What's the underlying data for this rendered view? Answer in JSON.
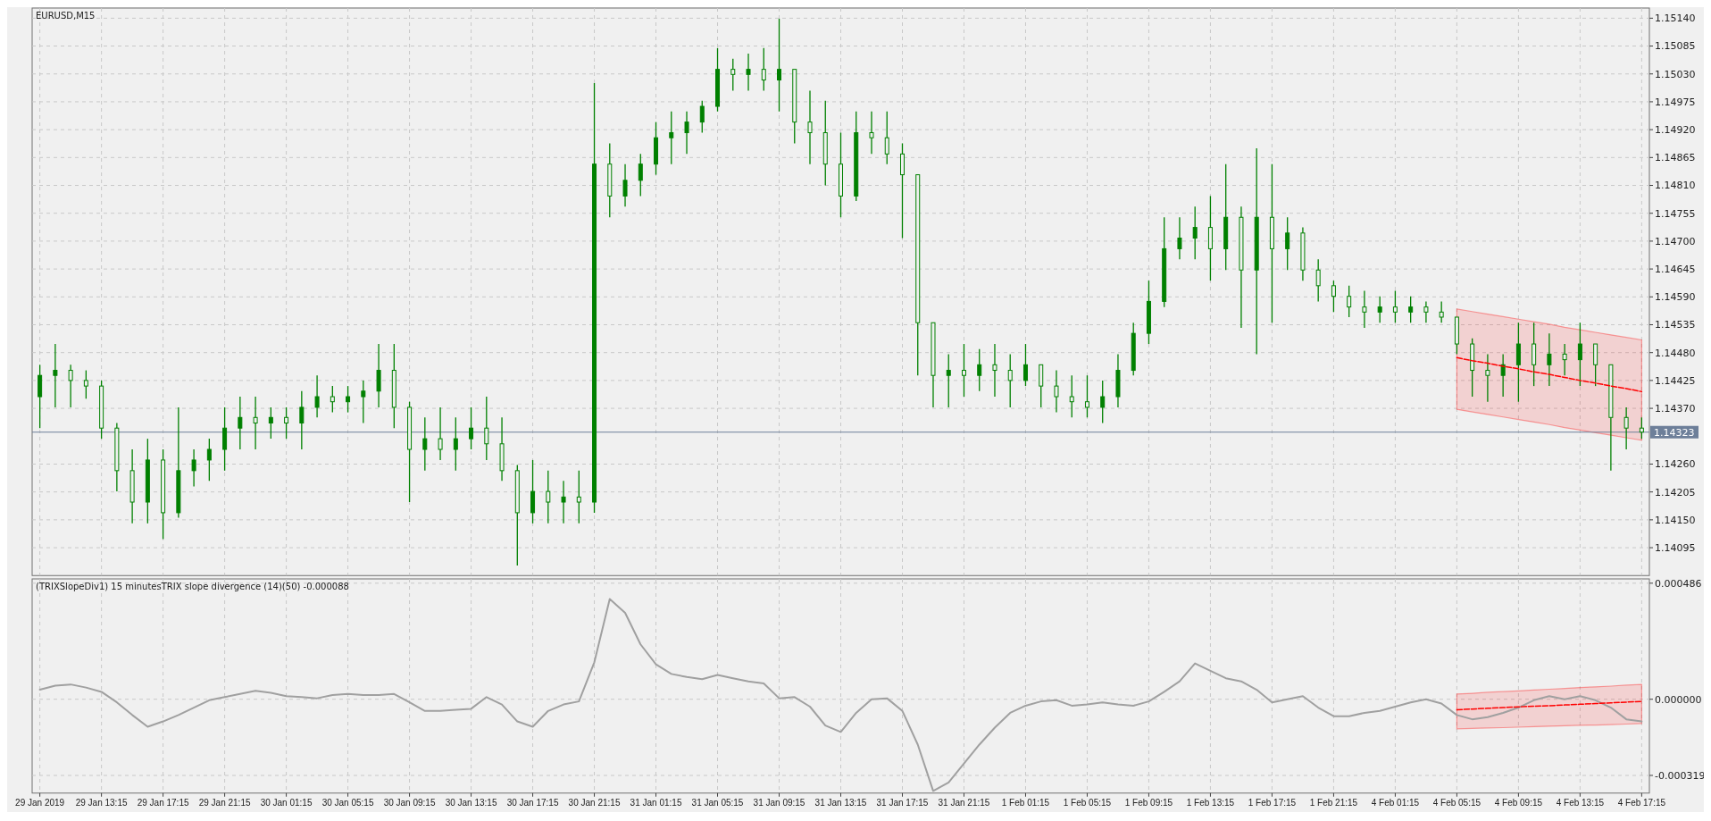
{
  "chart_data": [
    {
      "type": "candlestick",
      "title": "EURUSD,M15",
      "color": "#008000",
      "grid": true,
      "tick_labels": "y",
      "categories": [
        null,
        null,
        null,
        null,
        null,
        null,
        null,
        null,
        null,
        null,
        null,
        null,
        null,
        null,
        null,
        null,
        null,
        null,
        null,
        null,
        null,
        null,
        null,
        null,
        null,
        null,
        null,
        null,
        null,
        null,
        null,
        null,
        null,
        null,
        null,
        null,
        null,
        null,
        null,
        null,
        null,
        null,
        null,
        null,
        null,
        null,
        null,
        null,
        null,
        null,
        null,
        null,
        null,
        null,
        null,
        null,
        null,
        null,
        null,
        null,
        null,
        null,
        null,
        null,
        null,
        null,
        null,
        null,
        null,
        null,
        null,
        null,
        null,
        null,
        null,
        null,
        null,
        null,
        null,
        null,
        null,
        null,
        null,
        null,
        null,
        null,
        null,
        null,
        null,
        null,
        null,
        null,
        null,
        null,
        null,
        null,
        null,
        null,
        null,
        null,
        null,
        null,
        null,
        null,
        null
      ],
      "ylim": [
        1.1404,
        1.1516
      ],
      "yticks": [
        {
          "value": 1.14095,
          "label": "1.14095"
        },
        {
          "value": 1.1415,
          "label": "1.14150"
        },
        {
          "value": 1.14205,
          "label": "1.14205"
        },
        {
          "value": 1.1426,
          "label": "1.14260"
        },
        {
          "value": 1.1437,
          "label": "1.14370"
        },
        {
          "value": 1.14425,
          "label": "1.14425"
        },
        {
          "value": 1.1448,
          "label": "1.14480"
        },
        {
          "value": 1.14535,
          "label": "1.14535"
        },
        {
          "value": 1.1459,
          "label": "1.14590"
        },
        {
          "value": 1.14645,
          "label": "1.14645"
        },
        {
          "value": 1.147,
          "label": "1.14700"
        },
        {
          "value": 1.14755,
          "label": "1.14755"
        },
        {
          "value": 1.1481,
          "label": "1.14810"
        },
        {
          "value": 1.14865,
          "label": "1.14865"
        },
        {
          "value": 1.1492,
          "label": "1.14920"
        },
        {
          "value": 1.14975,
          "label": "1.14975"
        },
        {
          "value": 1.1503,
          "label": "1.15030"
        },
        {
          "value": 1.15085,
          "label": "1.15085"
        },
        {
          "value": 1.1514,
          "label": "1.15140"
        }
      ],
      "ref_lines": [
        {
          "axis": "y",
          "value": 1.14323,
          "label": "1.14323",
          "color": "#6d7f99"
        }
      ],
      "ohlc": [
        [
          1.14393,
          1.14456,
          1.14331,
          1.14435
        ],
        [
          1.14435,
          1.14497,
          1.14372,
          1.14445
        ],
        [
          1.14445,
          1.14456,
          1.14372,
          1.14425
        ],
        [
          1.14425,
          1.14445,
          1.14389,
          1.14414
        ],
        [
          1.14414,
          1.14425,
          1.1431,
          1.14331
        ],
        [
          1.14331,
          1.14341,
          1.14206,
          1.14247
        ],
        [
          1.14247,
          1.14289,
          1.14143,
          1.14185
        ],
        [
          1.14185,
          1.1431,
          1.14143,
          1.14268
        ],
        [
          1.14268,
          1.14289,
          1.14112,
          1.14164
        ],
        [
          1.14164,
          1.14372,
          1.14154,
          1.14247
        ],
        [
          1.14247,
          1.14289,
          1.14216,
          1.14268
        ],
        [
          1.14268,
          1.1431,
          1.14227,
          1.14289
        ],
        [
          1.14289,
          1.14372,
          1.14247,
          1.14331
        ],
        [
          1.14331,
          1.14393,
          1.14289,
          1.14352
        ],
        [
          1.14352,
          1.14393,
          1.14289,
          1.14341
        ],
        [
          1.14341,
          1.14372,
          1.1431,
          1.14352
        ],
        [
          1.14352,
          1.14372,
          1.1431,
          1.14341
        ],
        [
          1.14341,
          1.14404,
          1.14289,
          1.14372
        ],
        [
          1.14372,
          1.14435,
          1.14352,
          1.14393
        ],
        [
          1.14393,
          1.14414,
          1.14362,
          1.14383
        ],
        [
          1.14383,
          1.14414,
          1.14362,
          1.14393
        ],
        [
          1.14393,
          1.14425,
          1.14341,
          1.14404
        ],
        [
          1.14404,
          1.14497,
          1.14372,
          1.14445
        ],
        [
          1.14445,
          1.14497,
          1.14331,
          1.14372
        ],
        [
          1.14372,
          1.14383,
          1.14185,
          1.14289
        ],
        [
          1.14289,
          1.14352,
          1.14247,
          1.1431
        ],
        [
          1.1431,
          1.14372,
          1.14268,
          1.14289
        ],
        [
          1.14289,
          1.14352,
          1.14247,
          1.1431
        ],
        [
          1.1431,
          1.14372,
          1.14289,
          1.14331
        ],
        [
          1.14331,
          1.14393,
          1.14268,
          1.143
        ],
        [
          1.143,
          1.14352,
          1.14227,
          1.14247
        ],
        [
          1.14247,
          1.14258,
          1.1406,
          1.14164
        ],
        [
          1.14164,
          1.14268,
          1.14143,
          1.14206
        ],
        [
          1.14206,
          1.14247,
          1.14143,
          1.14185
        ],
        [
          1.14185,
          1.14227,
          1.14143,
          1.14195
        ],
        [
          1.14195,
          1.14247,
          1.14143,
          1.14185
        ],
        [
          1.14185,
          1.15012,
          1.14164,
          1.14852
        ],
        [
          1.14852,
          1.14893,
          1.14747,
          1.14789
        ],
        [
          1.14789,
          1.14852,
          1.14768,
          1.1482
        ],
        [
          1.1482,
          1.14872,
          1.14789,
          1.14852
        ],
        [
          1.14852,
          1.14935,
          1.14831,
          1.14904
        ],
        [
          1.14904,
          1.14956,
          1.14852,
          1.14914
        ],
        [
          1.14914,
          1.14956,
          1.14872,
          1.14935
        ],
        [
          1.14935,
          1.14977,
          1.14914,
          1.14966
        ],
        [
          1.14966,
          1.15081,
          1.14956,
          1.15039
        ],
        [
          1.15039,
          1.1506,
          1.14997,
          1.15029
        ],
        [
          1.15029,
          1.1507,
          1.14997,
          1.15039
        ],
        [
          1.15039,
          1.15081,
          1.14997,
          1.15018
        ],
        [
          1.15018,
          1.15139,
          1.14956,
          1.15039
        ],
        [
          1.15039,
          1.15039,
          1.14893,
          1.14935
        ],
        [
          1.14935,
          1.14997,
          1.14852,
          1.14914
        ],
        [
          1.14914,
          1.14977,
          1.1481,
          1.14852
        ],
        [
          1.14852,
          1.14914,
          1.14747,
          1.14789
        ],
        [
          1.14789,
          1.14956,
          1.14779,
          1.14914
        ],
        [
          1.14914,
          1.14956,
          1.14872,
          1.14904
        ],
        [
          1.14904,
          1.14956,
          1.14852,
          1.14872
        ],
        [
          1.14872,
          1.14893,
          1.14706,
          1.14831
        ],
        [
          1.14831,
          1.14831,
          1.14435,
          1.14539
        ],
        [
          1.14539,
          1.14539,
          1.14372,
          1.14435
        ],
        [
          1.14435,
          1.14477,
          1.14372,
          1.14445
        ],
        [
          1.14445,
          1.14497,
          1.14393,
          1.14435
        ],
        [
          1.14435,
          1.14487,
          1.14404,
          1.14456
        ],
        [
          1.14456,
          1.14497,
          1.14393,
          1.14445
        ],
        [
          1.14445,
          1.14477,
          1.14372,
          1.14425
        ],
        [
          1.14425,
          1.14497,
          1.14414,
          1.14456
        ],
        [
          1.14456,
          1.14456,
          1.14372,
          1.14414
        ],
        [
          1.14414,
          1.14445,
          1.14362,
          1.14393
        ],
        [
          1.14393,
          1.14435,
          1.14352,
          1.14383
        ],
        [
          1.14383,
          1.14435,
          1.14352,
          1.14372
        ],
        [
          1.14372,
          1.14425,
          1.14341,
          1.14393
        ],
        [
          1.14393,
          1.14477,
          1.14372,
          1.14445
        ],
        [
          1.14445,
          1.14539,
          1.14435,
          1.14518
        ],
        [
          1.14518,
          1.14622,
          1.14497,
          1.14581
        ],
        [
          1.14581,
          1.14747,
          1.1457,
          1.14685
        ],
        [
          1.14685,
          1.14747,
          1.14664,
          1.14706
        ],
        [
          1.14706,
          1.14768,
          1.14664,
          1.14727
        ],
        [
          1.14727,
          1.14789,
          1.14622,
          1.14685
        ],
        [
          1.14685,
          1.14852,
          1.14643,
          1.14747
        ],
        [
          1.14747,
          1.14768,
          1.14529,
          1.14643
        ],
        [
          1.14643,
          1.14883,
          1.14477,
          1.14747
        ],
        [
          1.14747,
          1.14852,
          1.14539,
          1.14685
        ],
        [
          1.14685,
          1.14747,
          1.14643,
          1.14716
        ],
        [
          1.14716,
          1.14727,
          1.14622,
          1.14643
        ],
        [
          1.14643,
          1.14664,
          1.14581,
          1.14612
        ],
        [
          1.14612,
          1.14622,
          1.1456,
          1.14591
        ],
        [
          1.14591,
          1.14612,
          1.1455,
          1.1457
        ],
        [
          1.1457,
          1.14602,
          1.14529,
          1.1456
        ],
        [
          1.1456,
          1.14591,
          1.14539,
          1.1457
        ],
        [
          1.1457,
          1.14602,
          1.14539,
          1.1456
        ],
        [
          1.1456,
          1.14591,
          1.14539,
          1.1457
        ],
        [
          1.1457,
          1.14581,
          1.14539,
          1.1456
        ],
        [
          1.1456,
          1.14581,
          1.14539,
          1.1455
        ],
        [
          1.1455,
          1.1455,
          1.14477,
          1.14497
        ],
        [
          1.14497,
          1.14508,
          1.14393,
          1.14445
        ],
        [
          1.14445,
          1.14477,
          1.14383,
          1.14435
        ],
        [
          1.14435,
          1.14477,
          1.14393,
          1.14456
        ],
        [
          1.14456,
          1.14539,
          1.14383,
          1.14497
        ],
        [
          1.14497,
          1.14539,
          1.14414,
          1.14456
        ],
        [
          1.14456,
          1.14518,
          1.14414,
          1.14477
        ],
        [
          1.14477,
          1.14497,
          1.14435,
          1.14466
        ],
        [
          1.14466,
          1.14539,
          1.14414,
          1.14497
        ],
        [
          1.14497,
          1.14497,
          1.14414,
          1.14456
        ],
        [
          1.14456,
          1.14456,
          1.14247,
          1.14352
        ],
        [
          1.14352,
          1.14372,
          1.14289,
          1.14331
        ],
        [
          1.14331,
          1.14352,
          1.1431,
          1.14323
        ]
      ],
      "series": [
        {
          "type": "line",
          "color": "#ff0000",
          "line_style": "dashed",
          "values": [
            null,
            null,
            null,
            null,
            null,
            null,
            null,
            null,
            null,
            null,
            null,
            null,
            null,
            null,
            null,
            null,
            null,
            null,
            null,
            null,
            null,
            null,
            null,
            null,
            null,
            null,
            null,
            null,
            null,
            null,
            null,
            null,
            null,
            null,
            null,
            null,
            null,
            null,
            null,
            null,
            null,
            null,
            null,
            null,
            null,
            null,
            null,
            null,
            null,
            null,
            null,
            null,
            null,
            null,
            null,
            null,
            null,
            null,
            null,
            null,
            null,
            null,
            null,
            null,
            null,
            null,
            null,
            null,
            null,
            null,
            null,
            null,
            null,
            null,
            null,
            null,
            null,
            null,
            null,
            null,
            null,
            null,
            null,
            null,
            null,
            null,
            null,
            null,
            null,
            null,
            null,
            null,
            1.1447,
            1.14464,
            1.14459,
            1.14453,
            1.14448,
            1.14442,
            1.14437,
            1.14431,
            1.14425,
            1.1442,
            1.14414,
            1.14409,
            1.14403
          ],
          "upper": [
            null,
            null,
            null,
            null,
            null,
            null,
            null,
            null,
            null,
            null,
            null,
            null,
            null,
            null,
            null,
            null,
            null,
            null,
            null,
            null,
            null,
            null,
            null,
            null,
            null,
            null,
            null,
            null,
            null,
            null,
            null,
            null,
            null,
            null,
            null,
            null,
            null,
            null,
            null,
            null,
            null,
            null,
            null,
            null,
            null,
            null,
            null,
            null,
            null,
            null,
            null,
            null,
            null,
            null,
            null,
            null,
            null,
            null,
            null,
            null,
            null,
            null,
            null,
            null,
            null,
            null,
            null,
            null,
            null,
            null,
            null,
            null,
            null,
            null,
            null,
            null,
            null,
            null,
            null,
            null,
            null,
            null,
            null,
            null,
            null,
            null,
            null,
            null,
            null,
            null,
            null,
            null,
            1.14566,
            1.14561,
            1.14556,
            1.14551,
            1.14546,
            1.14541,
            1.14536,
            1.1453,
            1.14525,
            1.1452,
            1.14515,
            1.1451,
            1.14505
          ],
          "lower": [
            null,
            null,
            null,
            null,
            null,
            null,
            null,
            null,
            null,
            null,
            null,
            null,
            null,
            null,
            null,
            null,
            null,
            null,
            null,
            null,
            null,
            null,
            null,
            null,
            null,
            null,
            null,
            null,
            null,
            null,
            null,
            null,
            null,
            null,
            null,
            null,
            null,
            null,
            null,
            null,
            null,
            null,
            null,
            null,
            null,
            null,
            null,
            null,
            null,
            null,
            null,
            null,
            null,
            null,
            null,
            null,
            null,
            null,
            null,
            null,
            null,
            null,
            null,
            null,
            null,
            null,
            null,
            null,
            null,
            null,
            null,
            null,
            null,
            null,
            null,
            null,
            null,
            null,
            null,
            null,
            null,
            null,
            null,
            null,
            null,
            null,
            null,
            null,
            null,
            null,
            null,
            null,
            1.14368,
            1.14363,
            1.14358,
            1.14353,
            1.14348,
            1.14343,
            1.14338,
            1.14332,
            1.14327,
            1.14322,
            1.14317,
            1.14312,
            1.14307
          ]
        }
      ]
    },
    {
      "type": "line",
      "title": "(TRIXSlopeDiv1) 15 minutesTRIX slope divergence (14)(50) -0.000088",
      "grid": true,
      "categories": [
        "29 Jan 2019",
        null,
        null,
        null,
        "29 Jan 13:15",
        null,
        null,
        null,
        "29 Jan 17:15",
        null,
        null,
        null,
        "29 Jan 21:15",
        null,
        null,
        null,
        "30 Jan 01:15",
        null,
        null,
        null,
        "30 Jan 05:15",
        null,
        null,
        null,
        "30 Jan 09:15",
        null,
        null,
        null,
        "30 Jan 13:15",
        null,
        null,
        null,
        "30 Jan 17:15",
        null,
        null,
        null,
        "30 Jan 21:15",
        null,
        null,
        null,
        "31 Jan 01:15",
        null,
        null,
        null,
        "31 Jan 05:15",
        null,
        null,
        null,
        "31 Jan 09:15",
        null,
        null,
        null,
        "31 Jan 13:15",
        null,
        null,
        null,
        "31 Jan 17:15",
        null,
        null,
        null,
        "31 Jan 21:15",
        null,
        null,
        null,
        "1 Feb 01:15",
        null,
        null,
        null,
        "1 Feb 05:15",
        null,
        null,
        null,
        "1 Feb 09:15",
        null,
        null,
        null,
        "1 Feb 13:15",
        null,
        null,
        null,
        "1 Feb 17:15",
        null,
        null,
        null,
        "1 Feb 21:15",
        null,
        null,
        null,
        "4 Feb 01:15",
        null,
        null,
        null,
        "4 Feb 05:15",
        null,
        null,
        null,
        "4 Feb 09:15",
        null,
        null,
        null,
        "4 Feb 13:15",
        null,
        null,
        null,
        "4 Feb 17:15"
      ],
      "ylim": [
        -0.000393,
        0.000504
      ],
      "yticks": [
        {
          "value": -0.000319,
          "label": "-0.000319"
        },
        {
          "value": 0,
          "label": "0.000000"
        },
        {
          "value": 0.000486,
          "label": "0.000486"
        }
      ],
      "series": [
        {
          "color": "#a0a0a0",
          "values": [
            4e-05,
            5.7e-05,
            6.2e-05,
            4.9e-05,
            3.1e-05,
            -1.3e-05,
            -6.6e-05,
            -0.000115,
            -9.3e-05,
            -6.6e-05,
            -3.5e-05,
            -4e-06,
            9e-06,
            2.2e-05,
            3.5e-05,
            2.7e-05,
            1.3e-05,
            9e-06,
            4e-06,
            1.8e-05,
            2.2e-05,
            1.8e-05,
            1.8e-05,
            2.2e-05,
            -1.3e-05,
            -4.9e-05,
            -4.9e-05,
            -4.4e-05,
            -4e-05,
            9e-06,
            -2.2e-05,
            -9.3e-05,
            -0.000115,
            -4.9e-05,
            -2.2e-05,
            -9e-06,
            0.000155,
            0.00042,
            0.000362,
            0.00023,
            0.000146,
            0.000106,
            9.3e-05,
            8.4e-05,
            0.000102,
            8.8e-05,
            7.5e-05,
            6.6e-05,
            4e-06,
            9e-06,
            -3.1e-05,
            -0.00011,
            -0.000137,
            -5.7e-05,
            0,
            4e-06,
            -4.9e-05,
            -0.00019,
            -0.000384,
            -0.000349,
            -0.000269,
            -0.00019,
            -0.000119,
            -5.7e-05,
            -2.7e-05,
            -9e-06,
            -4e-06,
            -2.7e-05,
            -2.2e-05,
            -1.3e-05,
            -2.2e-05,
            -2.7e-05,
            -9e-06,
            3.1e-05,
            7.5e-05,
            0.00015,
            0.000119,
            8.8e-05,
            7.5e-05,
            4e-05,
            -1.3e-05,
            0,
            1.3e-05,
            -3.5e-05,
            -7.1e-05,
            -7.1e-05,
            -5.7e-05,
            -4.9e-05,
            -3.1e-05,
            -1.3e-05,
            0,
            -1.8e-05,
            -6.6e-05,
            -8.4e-05,
            -7.5e-05,
            -5.7e-05,
            -3.5e-05,
            -4e-06,
            1.3e-05,
            0,
            1.3e-05,
            -4e-06,
            -3.5e-05,
            -8.4e-05,
            -9.3e-05
          ]
        },
        {
          "color": "#ff0000",
          "line_style": "dashed",
          "values": [
            null,
            null,
            null,
            null,
            null,
            null,
            null,
            null,
            null,
            null,
            null,
            null,
            null,
            null,
            null,
            null,
            null,
            null,
            null,
            null,
            null,
            null,
            null,
            null,
            null,
            null,
            null,
            null,
            null,
            null,
            null,
            null,
            null,
            null,
            null,
            null,
            null,
            null,
            null,
            null,
            null,
            null,
            null,
            null,
            null,
            null,
            null,
            null,
            null,
            null,
            null,
            null,
            null,
            null,
            null,
            null,
            null,
            null,
            null,
            null,
            null,
            null,
            null,
            null,
            null,
            null,
            null,
            null,
            null,
            null,
            null,
            null,
            null,
            null,
            null,
            null,
            null,
            null,
            null,
            null,
            null,
            null,
            null,
            null,
            null,
            null,
            null,
            null,
            null,
            null,
            null,
            null,
            -4.4e-05,
            -4.1e-05,
            -3.8e-05,
            -3.5e-05,
            -3.2e-05,
            -2.9e-05,
            -2.7e-05,
            -2.4e-05,
            -2.1e-05,
            -1.8e-05,
            -1.5e-05,
            -1.2e-05,
            -9e-06
          ],
          "upper": [
            null,
            null,
            null,
            null,
            null,
            null,
            null,
            null,
            null,
            null,
            null,
            null,
            null,
            null,
            null,
            null,
            null,
            null,
            null,
            null,
            null,
            null,
            null,
            null,
            null,
            null,
            null,
            null,
            null,
            null,
            null,
            null,
            null,
            null,
            null,
            null,
            null,
            null,
            null,
            null,
            null,
            null,
            null,
            null,
            null,
            null,
            null,
            null,
            null,
            null,
            null,
            null,
            null,
            null,
            null,
            null,
            null,
            null,
            null,
            null,
            null,
            null,
            null,
            null,
            null,
            null,
            null,
            null,
            null,
            null,
            null,
            null,
            null,
            null,
            null,
            null,
            null,
            null,
            null,
            null,
            null,
            null,
            null,
            null,
            null,
            null,
            null,
            null,
            null,
            null,
            null,
            null,
            2.2e-05,
            2.5e-05,
            2.9e-05,
            3.2e-05,
            3.5e-05,
            3.9e-05,
            4.2e-05,
            4.5e-05,
            4.9e-05,
            5.2e-05,
            5.5e-05,
            5.9e-05,
            6.2e-05
          ],
          "lower": [
            null,
            null,
            null,
            null,
            null,
            null,
            null,
            null,
            null,
            null,
            null,
            null,
            null,
            null,
            null,
            null,
            null,
            null,
            null,
            null,
            null,
            null,
            null,
            null,
            null,
            null,
            null,
            null,
            null,
            null,
            null,
            null,
            null,
            null,
            null,
            null,
            null,
            null,
            null,
            null,
            null,
            null,
            null,
            null,
            null,
            null,
            null,
            null,
            null,
            null,
            null,
            null,
            null,
            null,
            null,
            null,
            null,
            null,
            null,
            null,
            null,
            null,
            null,
            null,
            null,
            null,
            null,
            null,
            null,
            null,
            null,
            null,
            null,
            null,
            null,
            null,
            null,
            null,
            null,
            null,
            null,
            null,
            null,
            null,
            null,
            null,
            null,
            null,
            null,
            null,
            null,
            null,
            -0.000124,
            -0.000122,
            -0.00012,
            -0.000119,
            -0.000117,
            -0.000115,
            -0.000113,
            -0.000111,
            -0.000109,
            -0.000108,
            -0.000106,
            -0.000104,
            -0.000102
          ]
        }
      ]
    }
  ]
}
